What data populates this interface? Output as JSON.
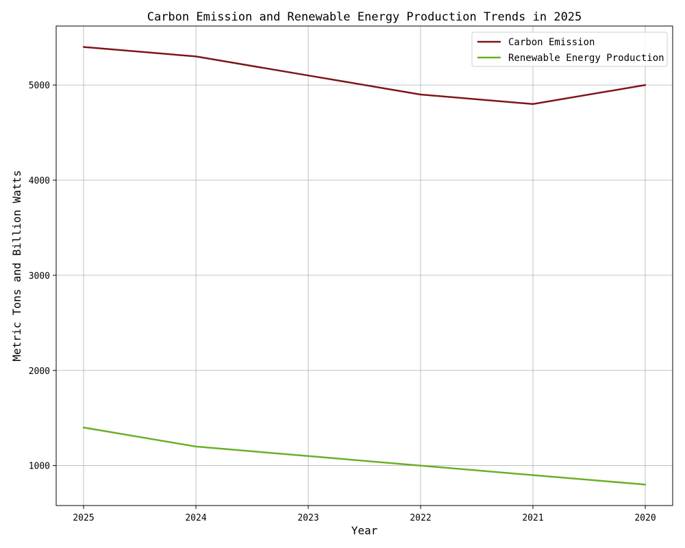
{
  "chart_data": {
    "type": "line",
    "title": "Carbon Emission and Renewable Energy Production Trends in 2025",
    "xlabel": "Year",
    "ylabel": "Metric Tons and Billion Watts",
    "categories": [
      "2025",
      "2024",
      "2023",
      "2022",
      "2021",
      "2020"
    ],
    "series": [
      {
        "name": "Carbon Emission",
        "color": "#7f1416",
        "values": [
          5400,
          5300,
          5100,
          4900,
          4800,
          5000
        ]
      },
      {
        "name": "Renewable Energy Production",
        "color": "#6aaf28",
        "values": [
          1400,
          1200,
          1100,
          1000,
          900,
          800
        ]
      }
    ],
    "ylim": [
      580,
      5620
    ],
    "yticks": [
      1000,
      2000,
      3000,
      4000,
      5000
    ],
    "grid": true,
    "legend_position": "top-right"
  }
}
